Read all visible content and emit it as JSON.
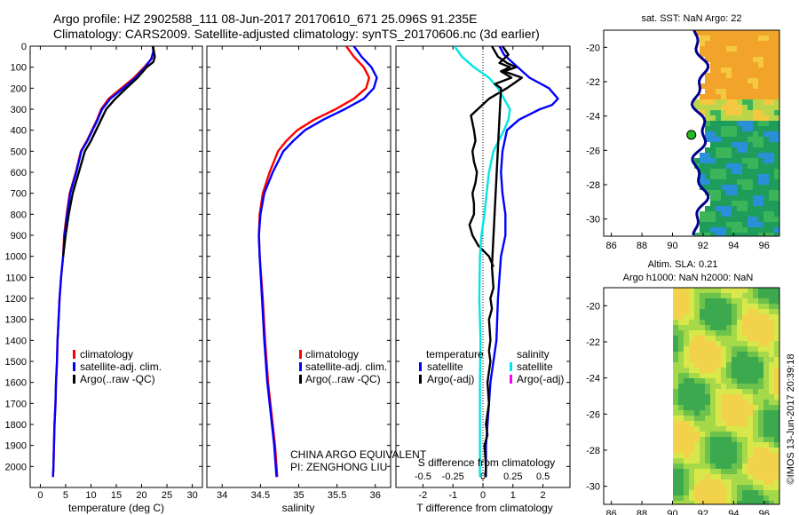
{
  "header": {
    "line1": "Argo profile: HZ 2902588_111 08-Jun-2017 20170610_671 25.096S 91.235E",
    "line2": "Climatology: CARS2009. Satellite-adjusted climatology: synTS_20170606.nc (3d earlier)"
  },
  "chart_data": [
    {
      "id": "temperature",
      "type": "line",
      "xlabel": "temperature (deg C)",
      "xlim": [
        -2,
        32
      ],
      "ylim": [
        2100,
        0
      ],
      "xticks": [
        "0",
        "5",
        "10",
        "15",
        "20",
        "25",
        "30"
      ],
      "xtick_values": [
        0,
        5,
        10,
        15,
        20,
        25,
        30
      ],
      "yticks": [
        "0",
        "100",
        "200",
        "300",
        "400",
        "500",
        "600",
        "700",
        "800",
        "900",
        "1000",
        "1100",
        "1200",
        "1300",
        "1400",
        "1500",
        "1600",
        "1700",
        "1800",
        "1900",
        "2000"
      ],
      "ytick_values": [
        0,
        100,
        200,
        300,
        400,
        500,
        600,
        700,
        800,
        900,
        1000,
        1100,
        1200,
        1300,
        1400,
        1500,
        1600,
        1700,
        1800,
        1900,
        2000
      ],
      "legend": [
        "climatology",
        "satellite-adj. clim.",
        "Argo(..raw -QC)"
      ],
      "series": [
        {
          "name": "climatology",
          "color": "#ff0000",
          "x": [
            22.3,
            22.4,
            22.0,
            20.5,
            18.5,
            16.0,
            13.5,
            12.0,
            11.2,
            10.2,
            9.2,
            8.0,
            7.0,
            5.8,
            5.2,
            4.7,
            4.5,
            4.1,
            3.8,
            3.6,
            3.4,
            3.3,
            3.1,
            3.0,
            2.8,
            2.7,
            2.6,
            2.5
          ],
          "y": [
            0,
            25,
            60,
            100,
            150,
            200,
            250,
            300,
            350,
            400,
            450,
            500,
            600,
            700,
            800,
            900,
            1000,
            1100,
            1200,
            1300,
            1400,
            1500,
            1600,
            1700,
            1800,
            1900,
            2000,
            2050
          ]
        },
        {
          "name": "satellite-adj. clim.",
          "color": "#0000ff",
          "x": [
            22.2,
            22.3,
            21.9,
            20.7,
            18.8,
            16.4,
            13.8,
            12.2,
            11.3,
            10.3,
            9.3,
            8.1,
            7.1,
            5.9,
            5.3,
            4.8,
            4.5,
            4.1,
            3.8,
            3.6,
            3.4,
            3.3,
            3.1,
            3.0,
            2.8,
            2.7,
            2.6,
            2.5
          ],
          "y": [
            0,
            25,
            60,
            100,
            150,
            200,
            250,
            300,
            350,
            400,
            450,
            500,
            600,
            700,
            800,
            900,
            1000,
            1100,
            1200,
            1300,
            1400,
            1500,
            1600,
            1700,
            1800,
            1900,
            2000,
            2050
          ]
        },
        {
          "name": "Argo(..raw -QC)",
          "color": "#000000",
          "x": [
            22.2,
            22.6,
            22.3,
            21.0,
            19.2,
            17.0,
            14.8,
            13.0,
            12.0,
            11.0,
            10.0,
            8.8,
            7.6,
            6.4,
            5.6,
            5.0,
            4.5
          ],
          "y": [
            0,
            50,
            75,
            100,
            150,
            200,
            250,
            300,
            350,
            400,
            450,
            500,
            600,
            700,
            800,
            900,
            1000
          ]
        }
      ]
    },
    {
      "id": "salinity",
      "type": "line",
      "xlabel": "salinity",
      "xlim": [
        33.8,
        36.2
      ],
      "ylim": [
        2100,
        0
      ],
      "xticks": [
        "34",
        "34.5",
        "35",
        "35.5",
        "36"
      ],
      "xtick_values": [
        34,
        34.5,
        35,
        35.5,
        36
      ],
      "legend": [
        "climatology",
        "satellite-adj. clim.",
        "Argo(..raw -QC)"
      ],
      "annotations": [
        "CHINA ARGO EQUIVALENT",
        "PI: ZENGHONG LIU"
      ],
      "series": [
        {
          "name": "climatology",
          "color": "#ff0000",
          "x": [
            35.62,
            35.72,
            35.85,
            35.92,
            35.88,
            35.72,
            35.48,
            35.2,
            34.98,
            34.84,
            34.73,
            34.62,
            34.53,
            34.49,
            34.48,
            34.49,
            34.53,
            34.56,
            34.6,
            34.63,
            34.66,
            34.69,
            34.71,
            34.72
          ],
          "y": [
            0,
            50,
            100,
            150,
            200,
            250,
            300,
            350,
            400,
            450,
            500,
            600,
            700,
            800,
            900,
            1000,
            1200,
            1400,
            1600,
            1700,
            1800,
            1900,
            2000,
            2050
          ]
        },
        {
          "name": "satellite-adj. clim.",
          "color": "#0000ff",
          "x": [
            35.72,
            35.82,
            35.95,
            36.02,
            35.98,
            35.85,
            35.6,
            35.32,
            35.08,
            34.93,
            34.8,
            34.66,
            34.55,
            34.5,
            34.48,
            34.49,
            34.52,
            34.55,
            34.59,
            34.62,
            34.65,
            34.68,
            34.7,
            34.71
          ],
          "y": [
            0,
            50,
            100,
            150,
            200,
            250,
            300,
            350,
            400,
            450,
            500,
            600,
            700,
            800,
            900,
            1000,
            1200,
            1400,
            1600,
            1700,
            1800,
            1900,
            2000,
            2050
          ]
        }
      ]
    },
    {
      "id": "difference",
      "type": "line",
      "xlabel": "T difference from climatology",
      "xlabel_top": "S difference from climatology",
      "xlim": [
        -2.9,
        2.9
      ],
      "ylim": [
        2100,
        0
      ],
      "xticks": [
        "-2",
        "-1",
        "0",
        "1",
        "2"
      ],
      "xtick_values": [
        -2,
        -1,
        0,
        1,
        2
      ],
      "sticks": [
        "-0.5",
        "-0.25",
        "0",
        "0.25",
        "0.5"
      ],
      "stick_values": [
        -2,
        -1,
        0,
        1,
        2
      ],
      "legend_temp_title": "temperature",
      "legend_sal_title": "salinity",
      "legend_temp": [
        "satellite",
        "Argo(-adj)"
      ],
      "legend_sal": [
        "satellite",
        "Argo(-adj)"
      ],
      "series": [
        {
          "name": "T satellite",
          "color": "#0000ff",
          "x": [
            0.55,
            0.7,
            1.0,
            1.55,
            2.2,
            2.5,
            2.3,
            1.9,
            1.2,
            0.8,
            0.65,
            0.6,
            0.65,
            0.75,
            0.75,
            0.6,
            0.55,
            0.5,
            0.45,
            0.35,
            0.25,
            0.2,
            0.15,
            0.1,
            0.1
          ],
          "y": [
            0,
            40,
            80,
            150,
            200,
            250,
            280,
            300,
            350,
            400,
            500,
            600,
            700,
            800,
            900,
            1000,
            1100,
            1200,
            1400,
            1500,
            1600,
            1700,
            1800,
            1900,
            2050
          ]
        },
        {
          "name": "T Argo(-adj)",
          "color": "#000000",
          "x": [
            0.3,
            0.5,
            0.8,
            1.1,
            0.7,
            1.3,
            1.0,
            0.8,
            0.2,
            -0.4,
            -0.3,
            -0.25,
            -0.35,
            -0.3,
            -0.2,
            -0.25,
            -0.35,
            -0.3,
            -0.3,
            -0.45,
            -0.35,
            -0.15,
            0.2,
            0.35
          ],
          "y": [
            0,
            50,
            80,
            100,
            120,
            150,
            180,
            200,
            250,
            330,
            400,
            450,
            500,
            550,
            600,
            650,
            700,
            750,
            800,
            850,
            900,
            950,
            1000,
            1050
          ]
        },
        {
          "name": "S satellite",
          "color": "#00e5e5",
          "x": [
            -0.95,
            -0.7,
            -0.3,
            0.2,
            0.5,
            0.7,
            0.9,
            0.85,
            0.7,
            0.35,
            0.2,
            0.12,
            0.05,
            -0.05,
            -0.1,
            -0.12,
            -0.08,
            -0.1,
            -0.1,
            -0.1
          ],
          "y": [
            0,
            50,
            100,
            150,
            200,
            250,
            300,
            350,
            400,
            500,
            600,
            700,
            800,
            900,
            1000,
            1200,
            1400,
            1600,
            1800,
            2050
          ]
        },
        {
          "name": "S Argo(-adj)",
          "color": "#000000",
          "x": [
            0.65,
            0.85,
            0.55,
            0.9,
            0.6,
            0.95,
            0.4,
            0.6,
            0.3,
            0.35,
            0.25,
            0.3,
            0.2,
            0.25,
            0.2,
            0.25,
            0.15,
            0.2,
            0.1,
            0.15,
            0.05,
            0.1,
            0.08
          ],
          "y": [
            0,
            40,
            80,
            100,
            120,
            150,
            180,
            200,
            1050,
            1150,
            1200,
            1250,
            1300,
            1400,
            1450,
            1500,
            1600,
            1700,
            1800,
            1850,
            1900,
            2000,
            2050
          ]
        }
      ]
    },
    {
      "id": "sst_map",
      "type": "heatmap",
      "title": "sat. SST: NaN Argo: 22",
      "xlim": [
        85.5,
        97
      ],
      "ylim": [
        -31,
        -19
      ],
      "xticks": [
        "86",
        "88",
        "90",
        "92",
        "94",
        "96"
      ],
      "xtick_values": [
        86,
        88,
        90,
        92,
        94,
        96
      ],
      "yticks": [
        "-20",
        "-22",
        "-24",
        "-26",
        "-28",
        "-30"
      ],
      "ytick_values": [
        -20,
        -22,
        -24,
        -26,
        -28,
        -30
      ],
      "data_lon_min": 91.8,
      "argo_marker": {
        "lon": 91.235,
        "lat": -25.096
      }
    },
    {
      "id": "sla_map",
      "type": "heatmap",
      "title": "Altim. SLA: 0.21",
      "subtitle": "Argo h1000: NaN h2000: NaN",
      "xlim": [
        85.5,
        97
      ],
      "ylim": [
        -31,
        -19
      ],
      "xticks": [
        "86",
        "88",
        "90",
        "92",
        "94",
        "96"
      ],
      "xtick_values": [
        86,
        88,
        90,
        92,
        94,
        96
      ],
      "yticks": [
        "-20",
        "-22",
        "-24",
        "-26",
        "-28",
        "-30"
      ],
      "ytick_values": [
        -20,
        -22,
        -24,
        -26,
        -28,
        -30
      ],
      "data_lon_min": 90
    }
  ],
  "footer": {
    "stamp": "©IMOS 13-Jun-2017 20:39:18"
  }
}
